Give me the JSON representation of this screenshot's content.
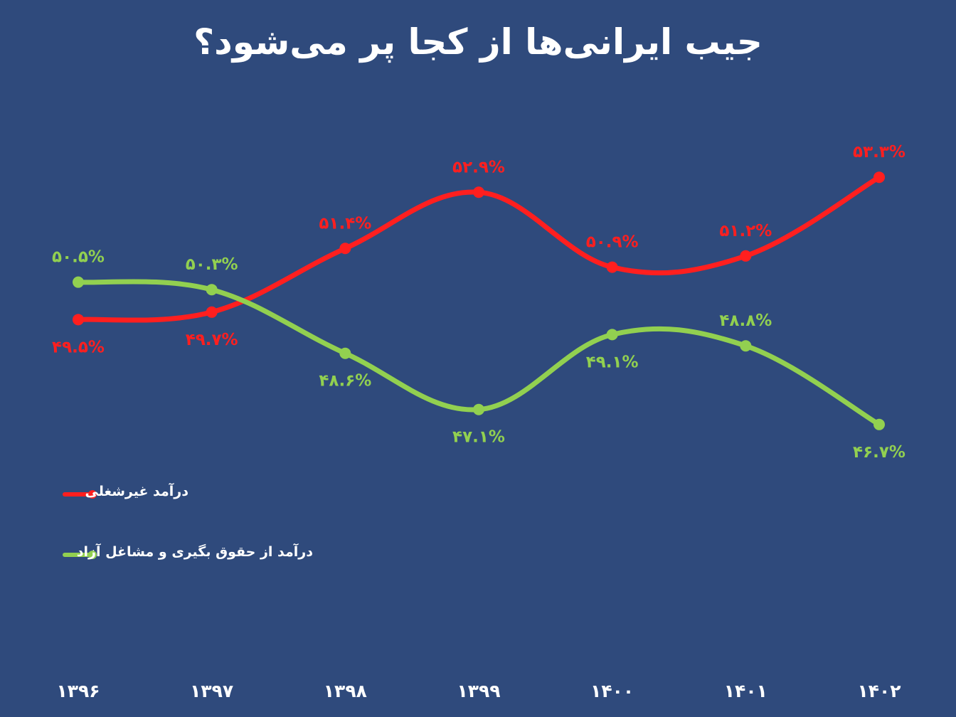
{
  "title": "جیب ایرانی‌ها از کجا پر می‌شود؟",
  "colors": {
    "background": "#2f4a7c",
    "series_red": "#ff1f1f",
    "series_green": "#92d050",
    "text": "#ffffff"
  },
  "chart_data": {
    "type": "line",
    "title": "جیب ایرانی‌ها از کجا پر می‌شود؟",
    "categories": [
      "۱۳۹۶",
      "۱۳۹۷",
      "۱۳۹۸",
      "۱۳۹۹",
      "۱۴۰۰",
      "۱۴۰۱",
      "۱۴۰۲"
    ],
    "series": [
      {
        "name": "درآمد غیرشغلی",
        "color": "#ff1f1f",
        "values": [
          49.5,
          49.7,
          51.4,
          52.9,
          50.9,
          51.2,
          53.3
        ],
        "labels": [
          "۴۹.۵%",
          "۴۹.۷%",
          "۵۱.۴%",
          "۵۲.۹%",
          "۵۰.۹%",
          "۵۱.۲%",
          "۵۳.۳%"
        ]
      },
      {
        "name": "درآمد از حقوق بگیری و مشاغل آزاد",
        "color": "#92d050",
        "values": [
          50.5,
          50.3,
          48.6,
          47.1,
          49.1,
          48.8,
          46.7
        ],
        "labels": [
          "۵۰.۵%",
          "۵۰.۳%",
          "۴۸.۶%",
          "۴۷.۱%",
          "۴۹.۱%",
          "۴۸.۸%",
          "۴۶.۷%"
        ]
      }
    ],
    "xlabel": "",
    "ylabel": "",
    "ylim": [
      45.5,
      54.5
    ],
    "grid": false,
    "legend": "left"
  }
}
